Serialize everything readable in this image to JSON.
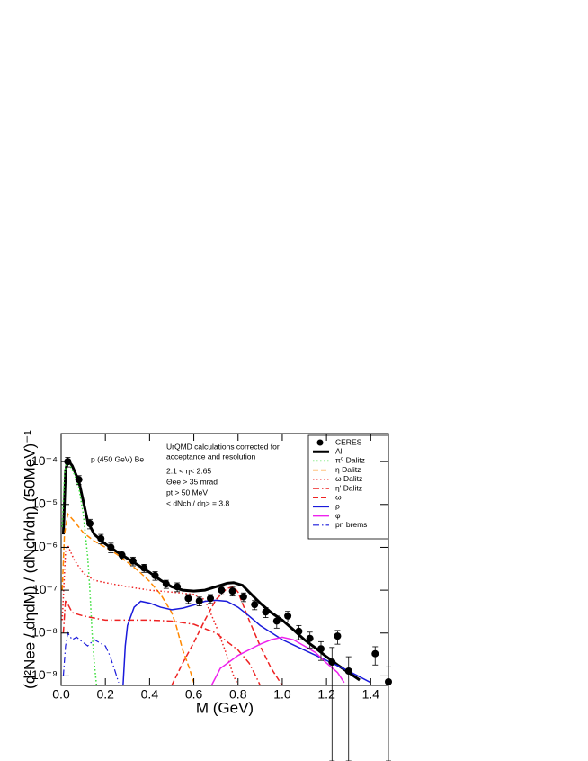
{
  "chart_data": {
    "type": "line",
    "x_label": "M (GeV)",
    "y_label": "(d²Nee / dηdM) / (dNch/dη) (50MeV)⁻¹",
    "annotations": [
      "p (450 GeV) Be",
      "UrQMD calculations corrected for",
      "acceptance and resolution",
      "2.1 < η< 2.65",
      "Θee > 35 mrad",
      "pt > 50 MeV",
      "< dNch / dη> = 3.8"
    ],
    "y_log": true,
    "xlim": [
      0,
      1.48
    ],
    "ylim": [
      6e-10,
      0.00045
    ],
    "xticks": [
      {
        "value": 0,
        "label": "0.0"
      },
      0.2,
      0.4,
      0.6,
      0.8,
      {
        "value": 1,
        "label": "1.0"
      },
      1.2,
      1.4
    ],
    "yticks": [
      {
        "value": 1e-09,
        "label": "10⁻⁹"
      },
      {
        "value": 1e-08,
        "label": "10⁻⁸"
      },
      {
        "value": 1e-07,
        "label": "10⁻⁷"
      },
      {
        "value": 1e-06,
        "label": "10⁻⁶"
      },
      {
        "value": 1e-05,
        "label": "10⁻⁵"
      },
      {
        "value": 0.0001,
        "label": "10⁻⁴"
      }
    ],
    "legend": "upper right",
    "series": [
      {
        "name": "CERES",
        "color": "#000000",
        "marker": "circle",
        "x": [
          0.03,
          0.08,
          0.13,
          0.18,
          0.225,
          0.275,
          0.325,
          0.375,
          0.425,
          0.475,
          0.525,
          0.575,
          0.625,
          0.675,
          0.725,
          0.775,
          0.825,
          0.875,
          0.925,
          0.975,
          1.025,
          1.075,
          1.125,
          1.175,
          1.225,
          1.25,
          1.3,
          1.42,
          1.48
        ],
        "values": [
          0.0001,
          3.8e-05,
          3.6e-06,
          1.6e-06,
          1e-06,
          6.6e-07,
          4.8e-07,
          3.3e-07,
          2.2e-07,
          1.4e-07,
          1.2e-07,
          6.4e-08,
          5.6e-08,
          6.4e-08,
          1e-07,
          9.5e-08,
          7e-08,
          4.6e-08,
          3.1e-08,
          1.9e-08,
          2.5e-08,
          1.1e-08,
          7.5e-09,
          4.3e-09,
          2.1e-09,
          8.5e-09,
          1.3e-09,
          3.3e-09,
          7.3e-10
        ],
        "errors": [
          2.5e-05,
          9e-06,
          9e-07,
          4e-07,
          2.5e-07,
          1.5e-07,
          1.1e-07,
          7e-08,
          5e-08,
          3e-08,
          2.8e-08,
          1.5e-08,
          1.3e-08,
          1.5e-08,
          2.2e-08,
          2.2e-08,
          1.6e-08,
          1.1e-08,
          8e-09,
          6e-09,
          7e-09,
          4e-09,
          3e-09,
          2e-09,
          2.5e-09,
          3e-09,
          1.5e-09,
          1.5e-09,
          9e-10
        ]
      },
      {
        "name": "All",
        "color": "#000000",
        "style": "solid",
        "width": 3,
        "x": [
          0.01,
          0.02,
          0.03,
          0.05,
          0.08,
          0.1,
          0.12,
          0.15,
          0.2,
          0.25,
          0.3,
          0.35,
          0.4,
          0.45,
          0.5,
          0.55,
          0.6,
          0.65,
          0.7,
          0.75,
          0.78,
          0.82,
          0.86,
          0.9,
          0.95,
          1.0,
          1.05,
          1.1,
          1.15,
          1.2,
          1.25,
          1.3,
          1.35
        ],
        "values": [
          2e-06,
          6e-05,
          0.00011,
          8e-05,
          3.5e-05,
          1.2e-05,
          4e-06,
          2e-06,
          1.2e-06,
          8e-07,
          5.5e-07,
          3.8e-07,
          2.6e-07,
          1.7e-07,
          1.2e-07,
          1e-07,
          9.5e-08,
          1e-07,
          1.2e-07,
          1.45e-07,
          1.5e-07,
          1.3e-07,
          8e-08,
          5e-08,
          3e-08,
          2e-08,
          1.2e-08,
          7e-09,
          4.5e-09,
          2.8e-09,
          1.8e-09,
          1.2e-09,
          8e-10
        ]
      },
      {
        "name": "π⁰ Dalitz",
        "color": "#33dd33",
        "style": "dotted",
        "width": 1.5,
        "x": [
          0.005,
          0.015,
          0.025,
          0.04,
          0.06,
          0.08,
          0.1,
          0.12,
          0.13,
          0.14,
          0.15,
          0.16
        ],
        "values": [
          3e-06,
          5e-05,
          0.0001,
          8e-05,
          5e-05,
          2.5e-05,
          6e-06,
          6e-07,
          1e-07,
          1e-08,
          2e-09,
          6e-10
        ]
      },
      {
        "name": "η Dalitz",
        "color": "#ff8800",
        "style": "dashed",
        "width": 1.5,
        "x": [
          0.005,
          0.015,
          0.03,
          0.06,
          0.1,
          0.15,
          0.2,
          0.25,
          0.3,
          0.35,
          0.4,
          0.45,
          0.5,
          0.52,
          0.55,
          0.58,
          0.6
        ],
        "values": [
          1e-07,
          2e-06,
          6e-06,
          4e-06,
          2.2e-06,
          1.4e-06,
          1e-06,
          7e-07,
          4.5e-07,
          2.8e-07,
          1.6e-07,
          8e-08,
          3e-08,
          1.5e-08,
          4e-09,
          1.5e-09,
          7e-10
        ]
      },
      {
        "name": "ω Dalitz",
        "color": "#ee2222",
        "style": "dotted",
        "width": 1.5,
        "x": [
          0.005,
          0.02,
          0.03,
          0.06,
          0.1,
          0.15,
          0.2,
          0.3,
          0.4,
          0.5,
          0.6,
          0.65,
          0.7,
          0.75,
          0.78,
          0.8
        ],
        "values": [
          2e-08,
          8e-07,
          1.1e-06,
          5e-07,
          2.5e-07,
          1.7e-07,
          1.5e-07,
          1.2e-07,
          1e-07,
          9e-08,
          8e-08,
          6e-08,
          1.5e-08,
          3e-09,
          1e-09,
          6e-10
        ]
      },
      {
        "name": "η' Dalitz",
        "color": "#ee2222",
        "style": "dashdot",
        "width": 1.5,
        "x": [
          0.01,
          0.02,
          0.05,
          0.1,
          0.2,
          0.3,
          0.4,
          0.5,
          0.6,
          0.7,
          0.8,
          0.85,
          0.88,
          0.9
        ],
        "values": [
          1e-08,
          6e-08,
          3e-08,
          2.5e-08,
          2e-08,
          2e-08,
          2e-08,
          1.9e-08,
          1.6e-08,
          1e-08,
          4e-09,
          2e-09,
          1e-09,
          6e-10
        ]
      },
      {
        "name": "ω",
        "color": "#ee2222",
        "style": "dashed",
        "width": 1.5,
        "x": [
          0.5,
          0.55,
          0.6,
          0.65,
          0.7,
          0.75,
          0.78,
          0.8,
          0.85,
          0.9,
          0.95,
          1.0
        ],
        "values": [
          6e-10,
          2e-09,
          6e-09,
          2e-08,
          6e-08,
          1.1e-07,
          1.2e-07,
          9e-08,
          2e-08,
          5e-09,
          1.5e-09,
          6e-10
        ]
      },
      {
        "name": "ρ",
        "color": "#1a1adb",
        "style": "solid",
        "width": 1.5,
        "x": [
          0.28,
          0.29,
          0.3,
          0.33,
          0.36,
          0.4,
          0.45,
          0.5,
          0.55,
          0.6,
          0.65,
          0.7,
          0.75,
          0.8,
          0.85,
          0.9,
          1.0,
          1.1,
          1.2,
          1.3,
          1.4
        ],
        "values": [
          6e-10,
          5e-09,
          1.5e-08,
          4e-08,
          5.5e-08,
          5e-08,
          4e-08,
          3.5e-08,
          3.8e-08,
          4.5e-08,
          5.5e-08,
          5.8e-08,
          5.5e-08,
          4e-08,
          2.5e-08,
          1.5e-08,
          7e-09,
          4e-09,
          2.3e-09,
          1.3e-09,
          7e-10
        ]
      },
      {
        "name": "φ",
        "color": "#ee22ee",
        "style": "solid",
        "width": 1.5,
        "x": [
          0.68,
          0.72,
          0.8,
          0.9,
          0.95,
          1.0,
          1.05,
          1.1,
          1.15,
          1.2,
          1.25,
          1.28
        ],
        "values": [
          6e-10,
          1.5e-09,
          3e-09,
          5.5e-09,
          7e-09,
          8e-09,
          7e-09,
          5e-09,
          3.5e-09,
          2e-09,
          1.2e-09,
          7e-10
        ]
      },
      {
        "name": "pn brems",
        "color": "#1a1adb",
        "style": "dashdot",
        "width": 1.2,
        "x": [
          0.01,
          0.02,
          0.03,
          0.05,
          0.07,
          0.1,
          0.12,
          0.15,
          0.2,
          0.22,
          0.24,
          0.26
        ],
        "values": [
          1e-09,
          5e-09,
          1e-08,
          7e-09,
          8e-09,
          6e-09,
          5e-09,
          7e-09,
          5e-09,
          3e-09,
          1.5e-09,
          7e-10
        ]
      }
    ]
  }
}
